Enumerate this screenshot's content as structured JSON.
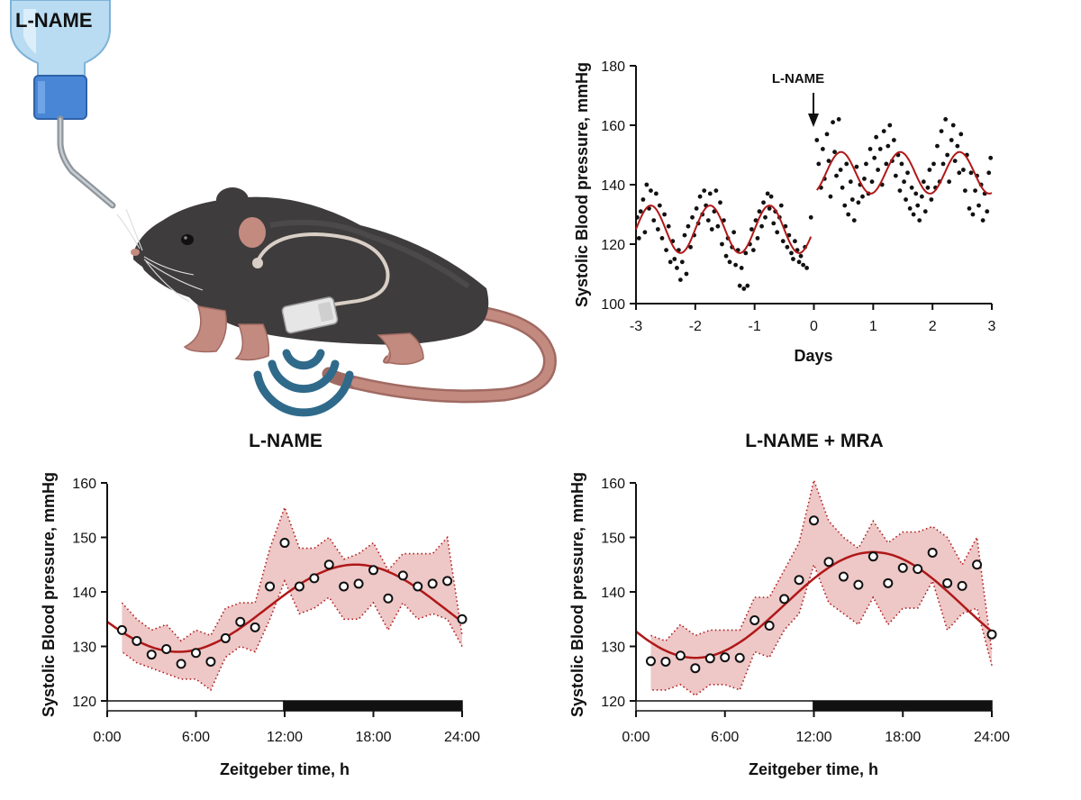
{
  "illustration": {
    "bottle_label": "L-NAME"
  },
  "chart_data": [
    {
      "type": "scatter",
      "xlabel": "Days",
      "ylabel": "Systolic Blood pressure, mmHg",
      "xlim": [
        -3,
        3
      ],
      "ylim": [
        100,
        180
      ],
      "x_ticks": [
        "-3",
        "-2",
        "-1",
        "0",
        "1",
        "2",
        "3"
      ],
      "y_ticks": [
        "100",
        "120",
        "140",
        "160",
        "180"
      ],
      "annotation": {
        "text": "L-NAME",
        "x": 0
      },
      "fit": {
        "baseline_before": 125,
        "amplitude_before": 8,
        "baseline_after": 144,
        "amplitude_after": 7,
        "period_days": 1
      },
      "points": [
        [
          -2.98,
          129
        ],
        [
          -2.95,
          122
        ],
        [
          -2.92,
          131
        ],
        [
          -2.88,
          135
        ],
        [
          -2.85,
          124
        ],
        [
          -2.82,
          140
        ],
        [
          -2.78,
          132
        ],
        [
          -2.75,
          138
        ],
        [
          -2.7,
          128
        ],
        [
          -2.66,
          137
        ],
        [
          -2.63,
          125
        ],
        [
          -2.6,
          133
        ],
        [
          -2.56,
          122
        ],
        [
          -2.52,
          130
        ],
        [
          -2.49,
          118
        ],
        [
          -2.45,
          126
        ],
        [
          -2.42,
          114
        ],
        [
          -2.38,
          121
        ],
        [
          -2.35,
          115
        ],
        [
          -2.31,
          112
        ],
        [
          -2.28,
          118
        ],
        [
          -2.25,
          108
        ],
        [
          -2.22,
          114
        ],
        [
          -2.18,
          123
        ],
        [
          -2.15,
          110
        ],
        [
          -2.12,
          126
        ],
        [
          -2.08,
          119
        ],
        [
          -2.05,
          129
        ],
        [
          -2.02,
          123
        ],
        [
          -1.98,
          132
        ],
        [
          -1.95,
          127
        ],
        [
          -1.92,
          136
        ],
        [
          -1.88,
          130
        ],
        [
          -1.85,
          138
        ],
        [
          -1.82,
          133
        ],
        [
          -1.78,
          128
        ],
        [
          -1.75,
          137
        ],
        [
          -1.72,
          125
        ],
        [
          -1.68,
          131
        ],
        [
          -1.65,
          138
        ],
        [
          -1.62,
          126
        ],
        [
          -1.58,
          134
        ],
        [
          -1.55,
          120
        ],
        [
          -1.52,
          128
        ],
        [
          -1.48,
          116
        ],
        [
          -1.45,
          122
        ],
        [
          -1.42,
          114
        ],
        [
          -1.38,
          119
        ],
        [
          -1.35,
          124
        ],
        [
          -1.32,
          113
        ],
        [
          -1.28,
          118
        ],
        [
          -1.25,
          106
        ],
        [
          -1.22,
          112
        ],
        [
          -1.18,
          105
        ],
        [
          -1.15,
          117
        ],
        [
          -1.12,
          106
        ],
        [
          -1.08,
          120
        ],
        [
          -1.05,
          125
        ],
        [
          -1.02,
          118
        ],
        [
          -0.98,
          128
        ],
        [
          -0.95,
          122
        ],
        [
          -0.92,
          131
        ],
        [
          -0.88,
          126
        ],
        [
          -0.85,
          134
        ],
        [
          -0.82,
          129
        ],
        [
          -0.78,
          137
        ],
        [
          -0.75,
          132
        ],
        [
          -0.72,
          136
        ],
        [
          -0.68,
          127
        ],
        [
          -0.65,
          131
        ],
        [
          -0.62,
          124
        ],
        [
          -0.58,
          129
        ],
        [
          -0.55,
          133
        ],
        [
          -0.52,
          121
        ],
        [
          -0.48,
          126
        ],
        [
          -0.45,
          119
        ],
        [
          -0.42,
          123
        ],
        [
          -0.38,
          117
        ],
        [
          -0.35,
          115
        ],
        [
          -0.32,
          121
        ],
        [
          -0.28,
          118
        ],
        [
          -0.25,
          114
        ],
        [
          -0.22,
          116
        ],
        [
          -0.18,
          113
        ],
        [
          -0.15,
          119
        ],
        [
          -0.12,
          112
        ],
        [
          -0.05,
          129
        ],
        [
          0.05,
          155
        ],
        [
          0.08,
          147
        ],
        [
          0.12,
          139
        ],
        [
          0.15,
          152
        ],
        [
          0.18,
          142
        ],
        [
          0.22,
          157
        ],
        [
          0.25,
          148
        ],
        [
          0.28,
          136
        ],
        [
          0.32,
          161
        ],
        [
          0.35,
          151
        ],
        [
          0.38,
          143
        ],
        [
          0.42,
          162
        ],
        [
          0.45,
          145
        ],
        [
          0.48,
          139
        ],
        [
          0.52,
          133
        ],
        [
          0.55,
          147
        ],
        [
          0.58,
          130
        ],
        [
          0.62,
          141
        ],
        [
          0.65,
          135
        ],
        [
          0.68,
          128
        ],
        [
          0.72,
          146
        ],
        [
          0.75,
          134
        ],
        [
          0.78,
          140
        ],
        [
          0.82,
          136
        ],
        [
          0.85,
          142
        ],
        [
          0.88,
          147
        ],
        [
          0.92,
          137
        ],
        [
          0.95,
          152
        ],
        [
          0.98,
          141
        ],
        [
          1.02,
          149
        ],
        [
          1.05,
          156
        ],
        [
          1.08,
          145
        ],
        [
          1.12,
          152
        ],
        [
          1.15,
          140
        ],
        [
          1.18,
          158
        ],
        [
          1.22,
          147
        ],
        [
          1.25,
          153
        ],
        [
          1.28,
          160
        ],
        [
          1.32,
          148
        ],
        [
          1.35,
          155
        ],
        [
          1.38,
          143
        ],
        [
          1.42,
          150
        ],
        [
          1.45,
          138
        ],
        [
          1.48,
          147
        ],
        [
          1.52,
          141
        ],
        [
          1.55,
          135
        ],
        [
          1.58,
          144
        ],
        [
          1.62,
          132
        ],
        [
          1.65,
          139
        ],
        [
          1.68,
          130
        ],
        [
          1.72,
          137
        ],
        [
          1.75,
          133
        ],
        [
          1.78,
          128
        ],
        [
          1.82,
          136
        ],
        [
          1.85,
          141
        ],
        [
          1.88,
          131
        ],
        [
          1.92,
          139
        ],
        [
          1.95,
          145
        ],
        [
          1.98,
          135
        ],
        [
          2.02,
          147
        ],
        [
          2.05,
          139
        ],
        [
          2.08,
          153
        ],
        [
          2.12,
          141
        ],
        [
          2.15,
          158
        ],
        [
          2.18,
          147
        ],
        [
          2.22,
          162
        ],
        [
          2.25,
          150
        ],
        [
          2.28,
          141
        ],
        [
          2.32,
          155
        ],
        [
          2.35,
          160
        ],
        [
          2.38,
          148
        ],
        [
          2.42,
          153
        ],
        [
          2.45,
          144
        ],
        [
          2.48,
          157
        ],
        [
          2.52,
          145
        ],
        [
          2.55,
          138
        ],
        [
          2.58,
          150
        ],
        [
          2.62,
          132
        ],
        [
          2.65,
          144
        ],
        [
          2.68,
          130
        ],
        [
          2.72,
          138
        ],
        [
          2.75,
          143
        ],
        [
          2.78,
          133
        ],
        [
          2.82,
          140
        ],
        [
          2.85,
          128
        ],
        [
          2.88,
          137
        ],
        [
          2.92,
          131
        ],
        [
          2.95,
          144
        ],
        [
          2.98,
          149
        ]
      ]
    },
    {
      "type": "line",
      "title": "L-NAME",
      "xlabel": "Zeitgeber time, h",
      "ylabel": "Systolic Blood pressure, mmHg",
      "xlim": [
        0,
        24
      ],
      "ylim": [
        118,
        160
      ],
      "x_ticks": [
        "0:00",
        "6:00",
        "12:00",
        "18:00",
        "24:00"
      ],
      "y_ticks": [
        "120",
        "130",
        "140",
        "150",
        "160"
      ],
      "dark_phase": [
        12,
        24
      ],
      "x": [
        1,
        2,
        3,
        4,
        5,
        6,
        7,
        8,
        9,
        10,
        11,
        12,
        13,
        14,
        15,
        16,
        17,
        18,
        19,
        20,
        21,
        22,
        23,
        24
      ],
      "mean": [
        133,
        131,
        128.5,
        129.5,
        126.8,
        128.8,
        127.2,
        131.5,
        134.5,
        133.5,
        141,
        149,
        141,
        142.5,
        145,
        141,
        141.5,
        144,
        138.8,
        143,
        141,
        141.5,
        142,
        135
      ],
      "upper": [
        138,
        135,
        133,
        134,
        131,
        133,
        132,
        137,
        138,
        138,
        148,
        155.5,
        148,
        148,
        150,
        146,
        147,
        149,
        144,
        147,
        147,
        147,
        150,
        132
      ],
      "lower": [
        129,
        127,
        126,
        125,
        124,
        124,
        122,
        128,
        130,
        129,
        135,
        142,
        136,
        137,
        139,
        135,
        135,
        138,
        133,
        138,
        135,
        136,
        135,
        130
      ],
      "fit": {
        "mesor": 137,
        "amplitude": 8,
        "acrophase_h": 16.8
      }
    },
    {
      "type": "line",
      "title": "L-NAME + MRA",
      "xlabel": "Zeitgeber time, h",
      "ylabel": "Systolic Blood pressure, mmHg",
      "xlim": [
        0,
        24
      ],
      "ylim": [
        118,
        160
      ],
      "x_ticks": [
        "0:00",
        "6:00",
        "12:00",
        "18:00",
        "24:00"
      ],
      "y_ticks": [
        "120",
        "130",
        "140",
        "150",
        "160"
      ],
      "dark_phase": [
        12,
        24
      ],
      "x": [
        1,
        2,
        3,
        4,
        5,
        6,
        7,
        8,
        9,
        10,
        11,
        12,
        13,
        14,
        15,
        16,
        17,
        18,
        19,
        20,
        21,
        22,
        23,
        24
      ],
      "mean": [
        127.3,
        127.2,
        128.3,
        126.0,
        127.8,
        128.0,
        127.9,
        134.8,
        133.8,
        138.7,
        142.2,
        153.1,
        145.5,
        142.8,
        141.3,
        146.5,
        141.6,
        144.4,
        144.2,
        147.2,
        141.6,
        141.1,
        145.0,
        132.2
      ],
      "upper": [
        132,
        131,
        134,
        132,
        133,
        133,
        133,
        139,
        139,
        144,
        149,
        160.5,
        153,
        150,
        148,
        153,
        149,
        151,
        151,
        152,
        150,
        145,
        150,
        129
      ],
      "lower": [
        122,
        122,
        123,
        121,
        123,
        123,
        122,
        129,
        128,
        133,
        136,
        145,
        138,
        136,
        134,
        139,
        134,
        137,
        137,
        142,
        133,
        136,
        137,
        126.5
      ],
      "fit": {
        "mesor": 137.6,
        "amplitude": 9.7,
        "acrophase_h": 16
      }
    }
  ],
  "colors": {
    "fit_line": "#b01818",
    "band_fill": "#e8b4b4",
    "band_edge": "#b01818",
    "points": "#111111",
    "mouse_body": "#3e3c3c",
    "mouse_pink": "#c38a80",
    "implant": "#e6e6e6",
    "signal": "#2f6a8a",
    "bottle": "#b9dcf2",
    "bottle_cap": "#4a86d6"
  }
}
